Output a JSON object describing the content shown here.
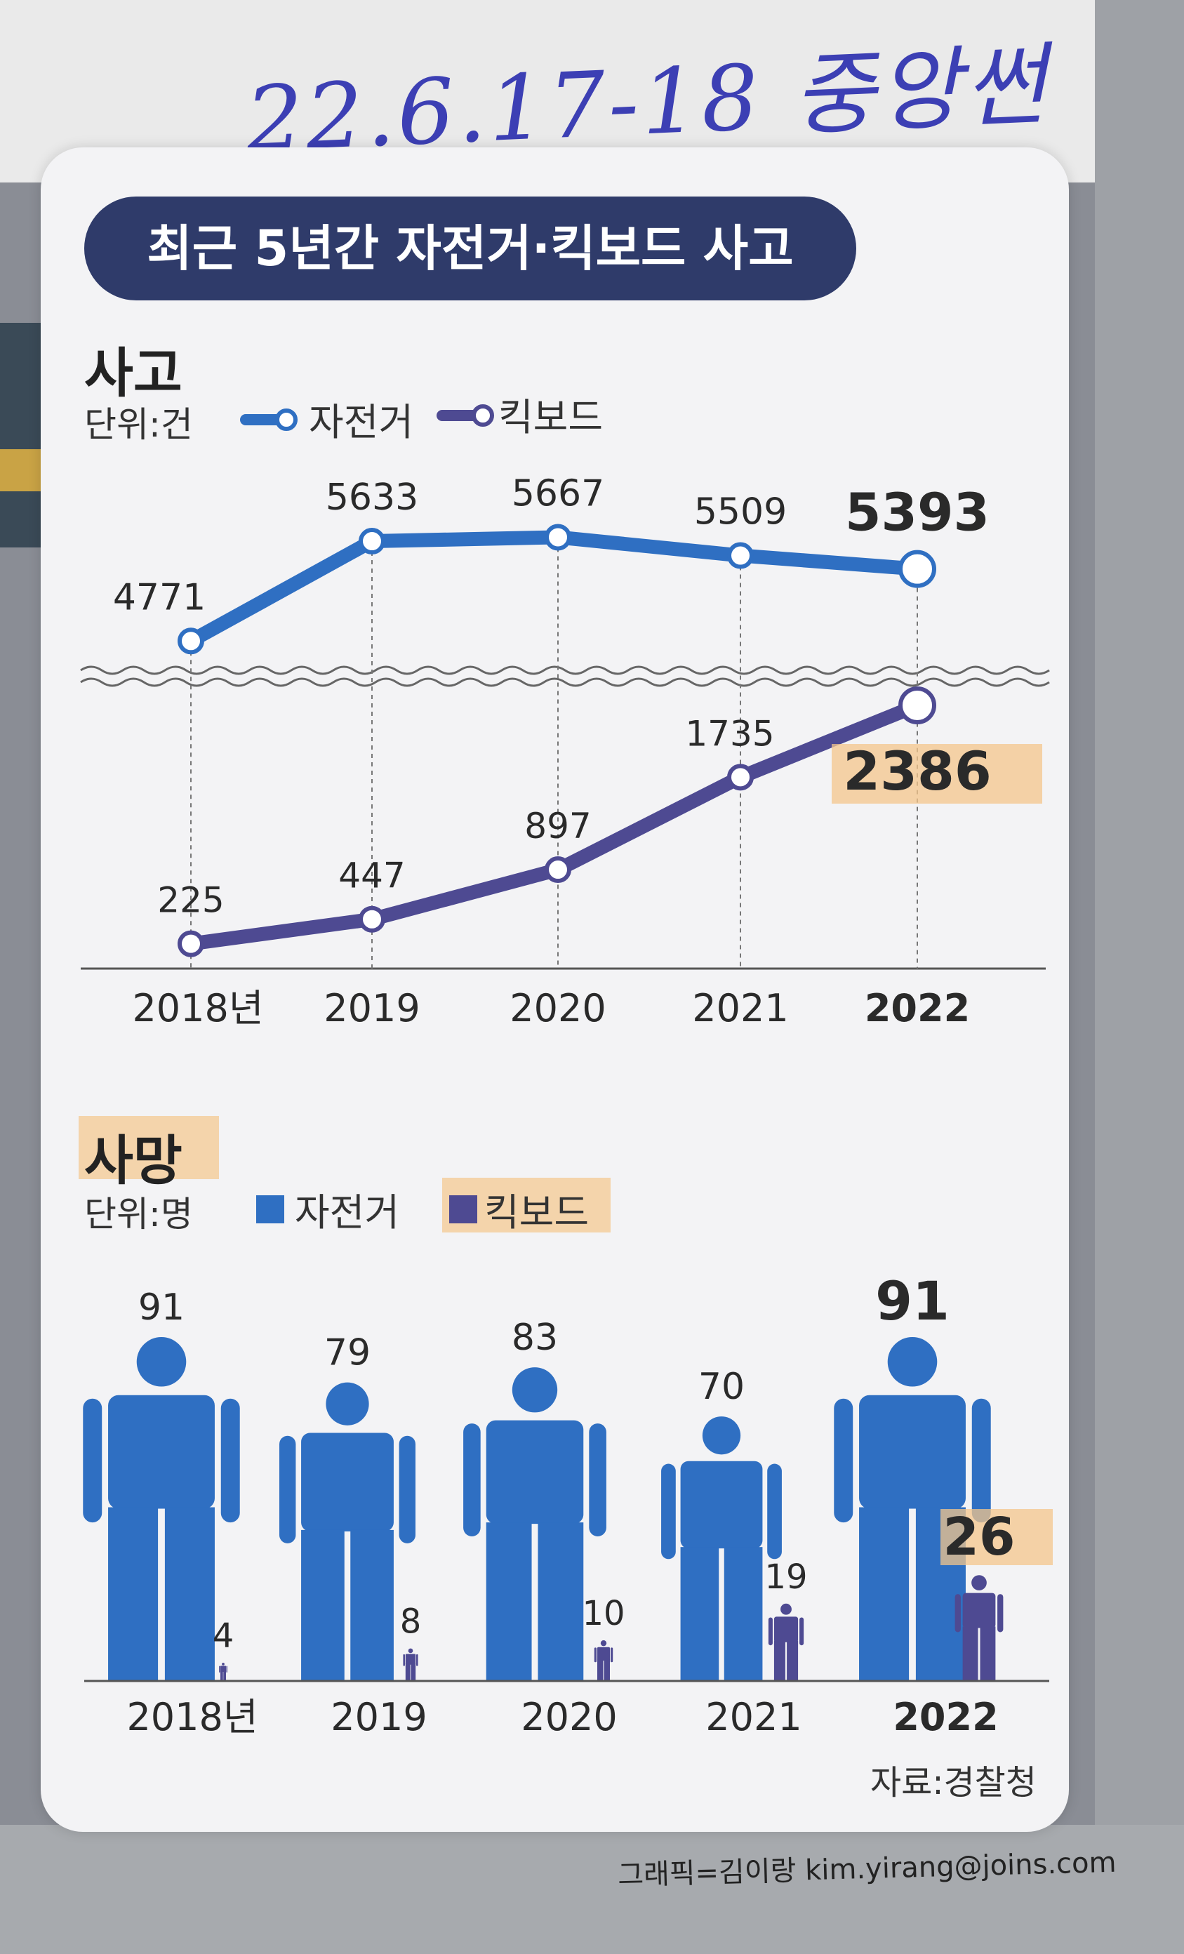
{
  "header": {
    "handwritten_note": "22.6.17-18 중앙썬",
    "title": "최근 5년간 자전거·킥보드 사고"
  },
  "colors": {
    "bicycle": "#2f6fc2",
    "kickboard": "#4e4a92",
    "title_bg": "#2f3b6a",
    "highlight": "#f4c68b"
  },
  "chart_data": [
    {
      "type": "line",
      "title": "사고",
      "unit": "단위:건",
      "categories": [
        "2018년",
        "2019",
        "2020",
        "2021",
        "2022"
      ],
      "series": [
        {
          "name": "자전거",
          "values": [
            4771,
            5633,
            5667,
            5509,
            5393
          ]
        },
        {
          "name": "킥보드",
          "values": [
            225,
            447,
            897,
            1735,
            2386
          ]
        }
      ],
      "broken_axis": true,
      "legend_position": "top-left"
    },
    {
      "type": "bar",
      "title": "사망",
      "unit": "단위:명",
      "categories": [
        "2018년",
        "2019",
        "2020",
        "2021",
        "2022"
      ],
      "series": [
        {
          "name": "자전거",
          "values": [
            91,
            79,
            83,
            70,
            91
          ]
        },
        {
          "name": "킥보드",
          "values": [
            4,
            8,
            10,
            19,
            26
          ]
        }
      ],
      "marker": "person-icon",
      "legend_position": "top-left"
    }
  ],
  "footer": {
    "source": "자료:경찰청",
    "credit": "그래픽=김이랑 kim.yirang@joins.com"
  }
}
